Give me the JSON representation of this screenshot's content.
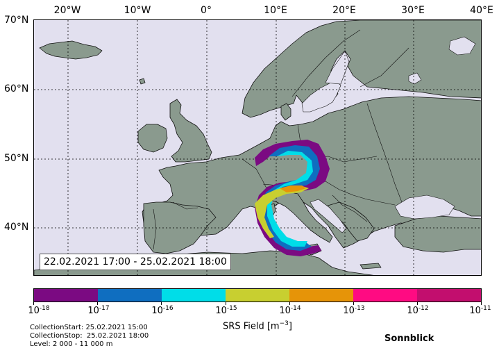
{
  "map": {
    "longitude_labels": [
      "20°W",
      "10°W",
      "0°",
      "10°E",
      "20°E",
      "30°E",
      "40°E"
    ],
    "latitude_labels": [
      "70°N",
      "60°N",
      "50°N",
      "40°N"
    ],
    "date_range": "22.02.2021 17:00 - 25.02.2021 18:00",
    "colors": {
      "ocean": "#e2e0ef",
      "land": "#8a9a8e",
      "coast": "#111111"
    }
  },
  "colorbar": {
    "title_text": "SRS Field [m",
    "title_exp": "−3",
    "title_close": "]",
    "base": "10",
    "exponents": [
      "-18",
      "-17",
      "-16",
      "-15",
      "-14",
      "-13",
      "-12",
      "-11"
    ],
    "colors": [
      "#7b0a82",
      "#0f6ec0",
      "#00dde8",
      "#c8cf30",
      "#e69408",
      "#ff0b82",
      "#c20e6e"
    ]
  },
  "meta": {
    "collection_start": "CollectionStart: 25.02.2021 15:00",
    "collection_stop": "CollectionStop:  25.02.2021 18:00",
    "level": "Level: 2 000 - 11 000 m"
  },
  "station": "Sonnblick"
}
